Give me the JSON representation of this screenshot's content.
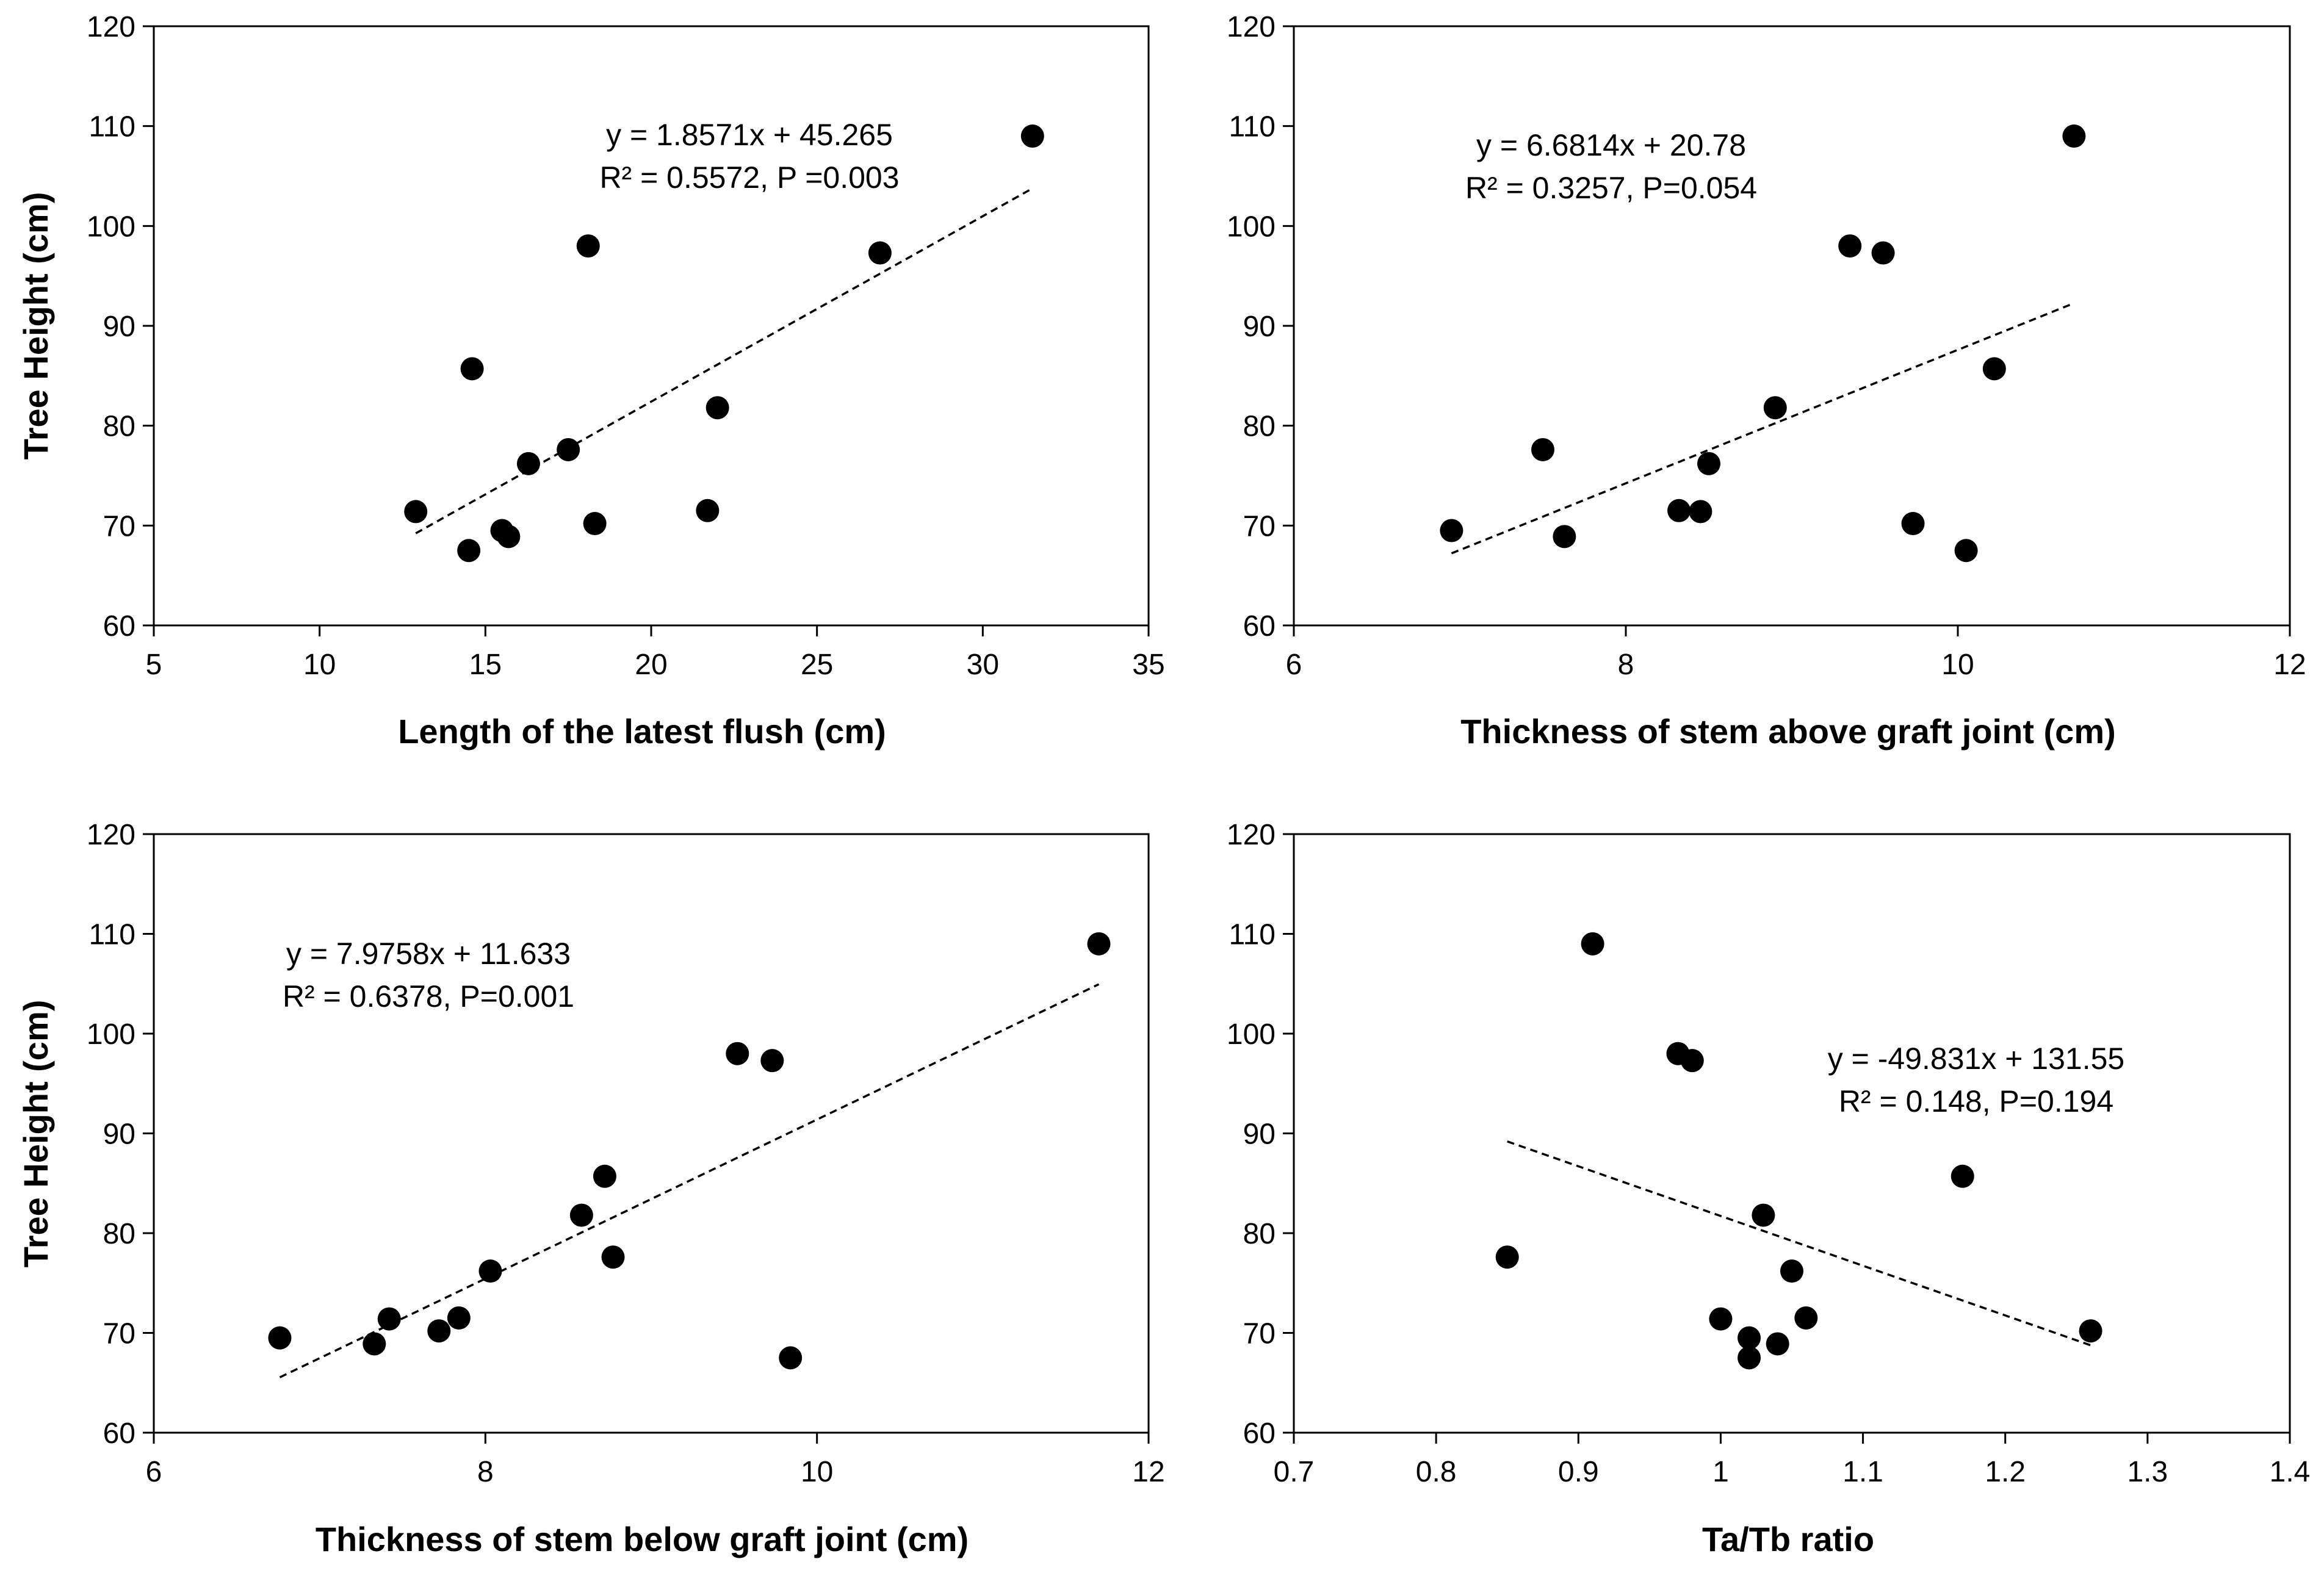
{
  "chart_data": [
    {
      "type": "scatter",
      "xlabel": "Length of the latest flush (cm)",
      "ylabel": "Tree Height (cm)",
      "xlim": [
        5,
        35
      ],
      "ylim": [
        60,
        120
      ],
      "xticks": [
        "5",
        "10",
        "15",
        "20",
        "25",
        "30",
        "35"
      ],
      "yticks": [
        "60",
        "70",
        "80",
        "90",
        "100",
        "110",
        "120"
      ],
      "grid": false,
      "points": [
        {
          "x": 12.9,
          "y": 71.4
        },
        {
          "x": 14.5,
          "y": 67.5
        },
        {
          "x": 14.6,
          "y": 85.7
        },
        {
          "x": 15.5,
          "y": 69.5
        },
        {
          "x": 15.7,
          "y": 68.9
        },
        {
          "x": 16.3,
          "y": 76.2
        },
        {
          "x": 17.5,
          "y": 77.6
        },
        {
          "x": 18.1,
          "y": 98.0
        },
        {
          "x": 18.3,
          "y": 70.2
        },
        {
          "x": 21.7,
          "y": 71.5
        },
        {
          "x": 22.0,
          "y": 81.8
        },
        {
          "x": 26.9,
          "y": 97.3
        },
        {
          "x": 31.5,
          "y": 109.0
        }
      ],
      "trendline": {
        "slope": 1.8571,
        "intercept": 45.265,
        "x_range": [
          12.9,
          31.5
        ]
      },
      "annotation": [
        "y = 1.8571x + 45.265",
        "R² = 0.5572, P =0.003"
      ]
    },
    {
      "type": "scatter",
      "xlabel": "Thickness of stem above graft joint (cm)",
      "ylabel": "",
      "xlim": [
        6,
        12
      ],
      "ylim": [
        60,
        120
      ],
      "xticks": [
        "6",
        "8",
        "10",
        "12"
      ],
      "yticks": [
        "60",
        "70",
        "80",
        "90",
        "100",
        "110",
        "120"
      ],
      "grid": false,
      "points": [
        {
          "x": 6.95,
          "y": 69.5
        },
        {
          "x": 7.5,
          "y": 77.6
        },
        {
          "x": 7.63,
          "y": 68.9
        },
        {
          "x": 8.32,
          "y": 71.5
        },
        {
          "x": 8.45,
          "y": 71.4
        },
        {
          "x": 8.5,
          "y": 76.2
        },
        {
          "x": 8.9,
          "y": 81.8
        },
        {
          "x": 9.35,
          "y": 98.0
        },
        {
          "x": 9.55,
          "y": 97.3
        },
        {
          "x": 9.73,
          "y": 70.2
        },
        {
          "x": 10.05,
          "y": 67.5
        },
        {
          "x": 10.22,
          "y": 85.7
        },
        {
          "x": 10.7,
          "y": 109.0
        }
      ],
      "trendline": {
        "slope": 6.6814,
        "intercept": 20.78,
        "x_range": [
          6.95,
          10.7
        ]
      },
      "annotation": [
        "y = 6.6814x + 20.78",
        "R² = 0.3257, P=0.054"
      ]
    },
    {
      "type": "scatter",
      "xlabel": "Thickness of stem below graft joint (cm)",
      "ylabel": "Tree Height (cm)",
      "xlim": [
        6,
        12
      ],
      "ylim": [
        60,
        120
      ],
      "xticks": [
        "6",
        "8",
        "10",
        "12"
      ],
      "yticks": [
        "60",
        "70",
        "80",
        "90",
        "100",
        "110",
        "120"
      ],
      "grid": false,
      "points": [
        {
          "x": 6.76,
          "y": 69.5
        },
        {
          "x": 7.33,
          "y": 68.9
        },
        {
          "x": 7.42,
          "y": 71.4
        },
        {
          "x": 7.72,
          "y": 70.2
        },
        {
          "x": 7.84,
          "y": 71.5
        },
        {
          "x": 8.03,
          "y": 76.2
        },
        {
          "x": 8.58,
          "y": 81.8
        },
        {
          "x": 8.72,
          "y": 85.7
        },
        {
          "x": 8.77,
          "y": 77.6
        },
        {
          "x": 9.52,
          "y": 98.0
        },
        {
          "x": 9.73,
          "y": 97.3
        },
        {
          "x": 9.84,
          "y": 67.5
        },
        {
          "x": 11.7,
          "y": 109.0
        }
      ],
      "trendline": {
        "slope": 7.9758,
        "intercept": 11.633,
        "x_range": [
          6.76,
          11.7
        ]
      },
      "annotation": [
        "y = 7.9758x + 11.633",
        "R² = 0.6378, P=0.001"
      ]
    },
    {
      "type": "scatter",
      "xlabel": "Ta/Tb ratio",
      "ylabel": "",
      "xlim": [
        0.7,
        1.4
      ],
      "ylim": [
        60,
        120
      ],
      "xticks": [
        "0.7",
        "0.8",
        "0.9",
        "1",
        "1.1",
        "1.2",
        "1.3",
        "1.4"
      ],
      "yticks": [
        "60",
        "70",
        "80",
        "90",
        "100",
        "110",
        "120"
      ],
      "grid": false,
      "points": [
        {
          "x": 0.85,
          "y": 77.6
        },
        {
          "x": 0.91,
          "y": 109.0
        },
        {
          "x": 0.97,
          "y": 98.0
        },
        {
          "x": 0.98,
          "y": 97.3
        },
        {
          "x": 1.0,
          "y": 71.4
        },
        {
          "x": 1.02,
          "y": 69.5
        },
        {
          "x": 1.02,
          "y": 67.5
        },
        {
          "x": 1.03,
          "y": 81.8
        },
        {
          "x": 1.04,
          "y": 68.9
        },
        {
          "x": 1.05,
          "y": 76.2
        },
        {
          "x": 1.06,
          "y": 71.5
        },
        {
          "x": 1.17,
          "y": 85.7
        },
        {
          "x": 1.26,
          "y": 70.2
        }
      ],
      "trendline": {
        "slope": -49.831,
        "intercept": 131.55,
        "x_range": [
          0.85,
          1.26
        ]
      },
      "annotation": [
        "y = -49.831x + 131.55",
        "R² = 0.148, P=0.194"
      ]
    }
  ]
}
